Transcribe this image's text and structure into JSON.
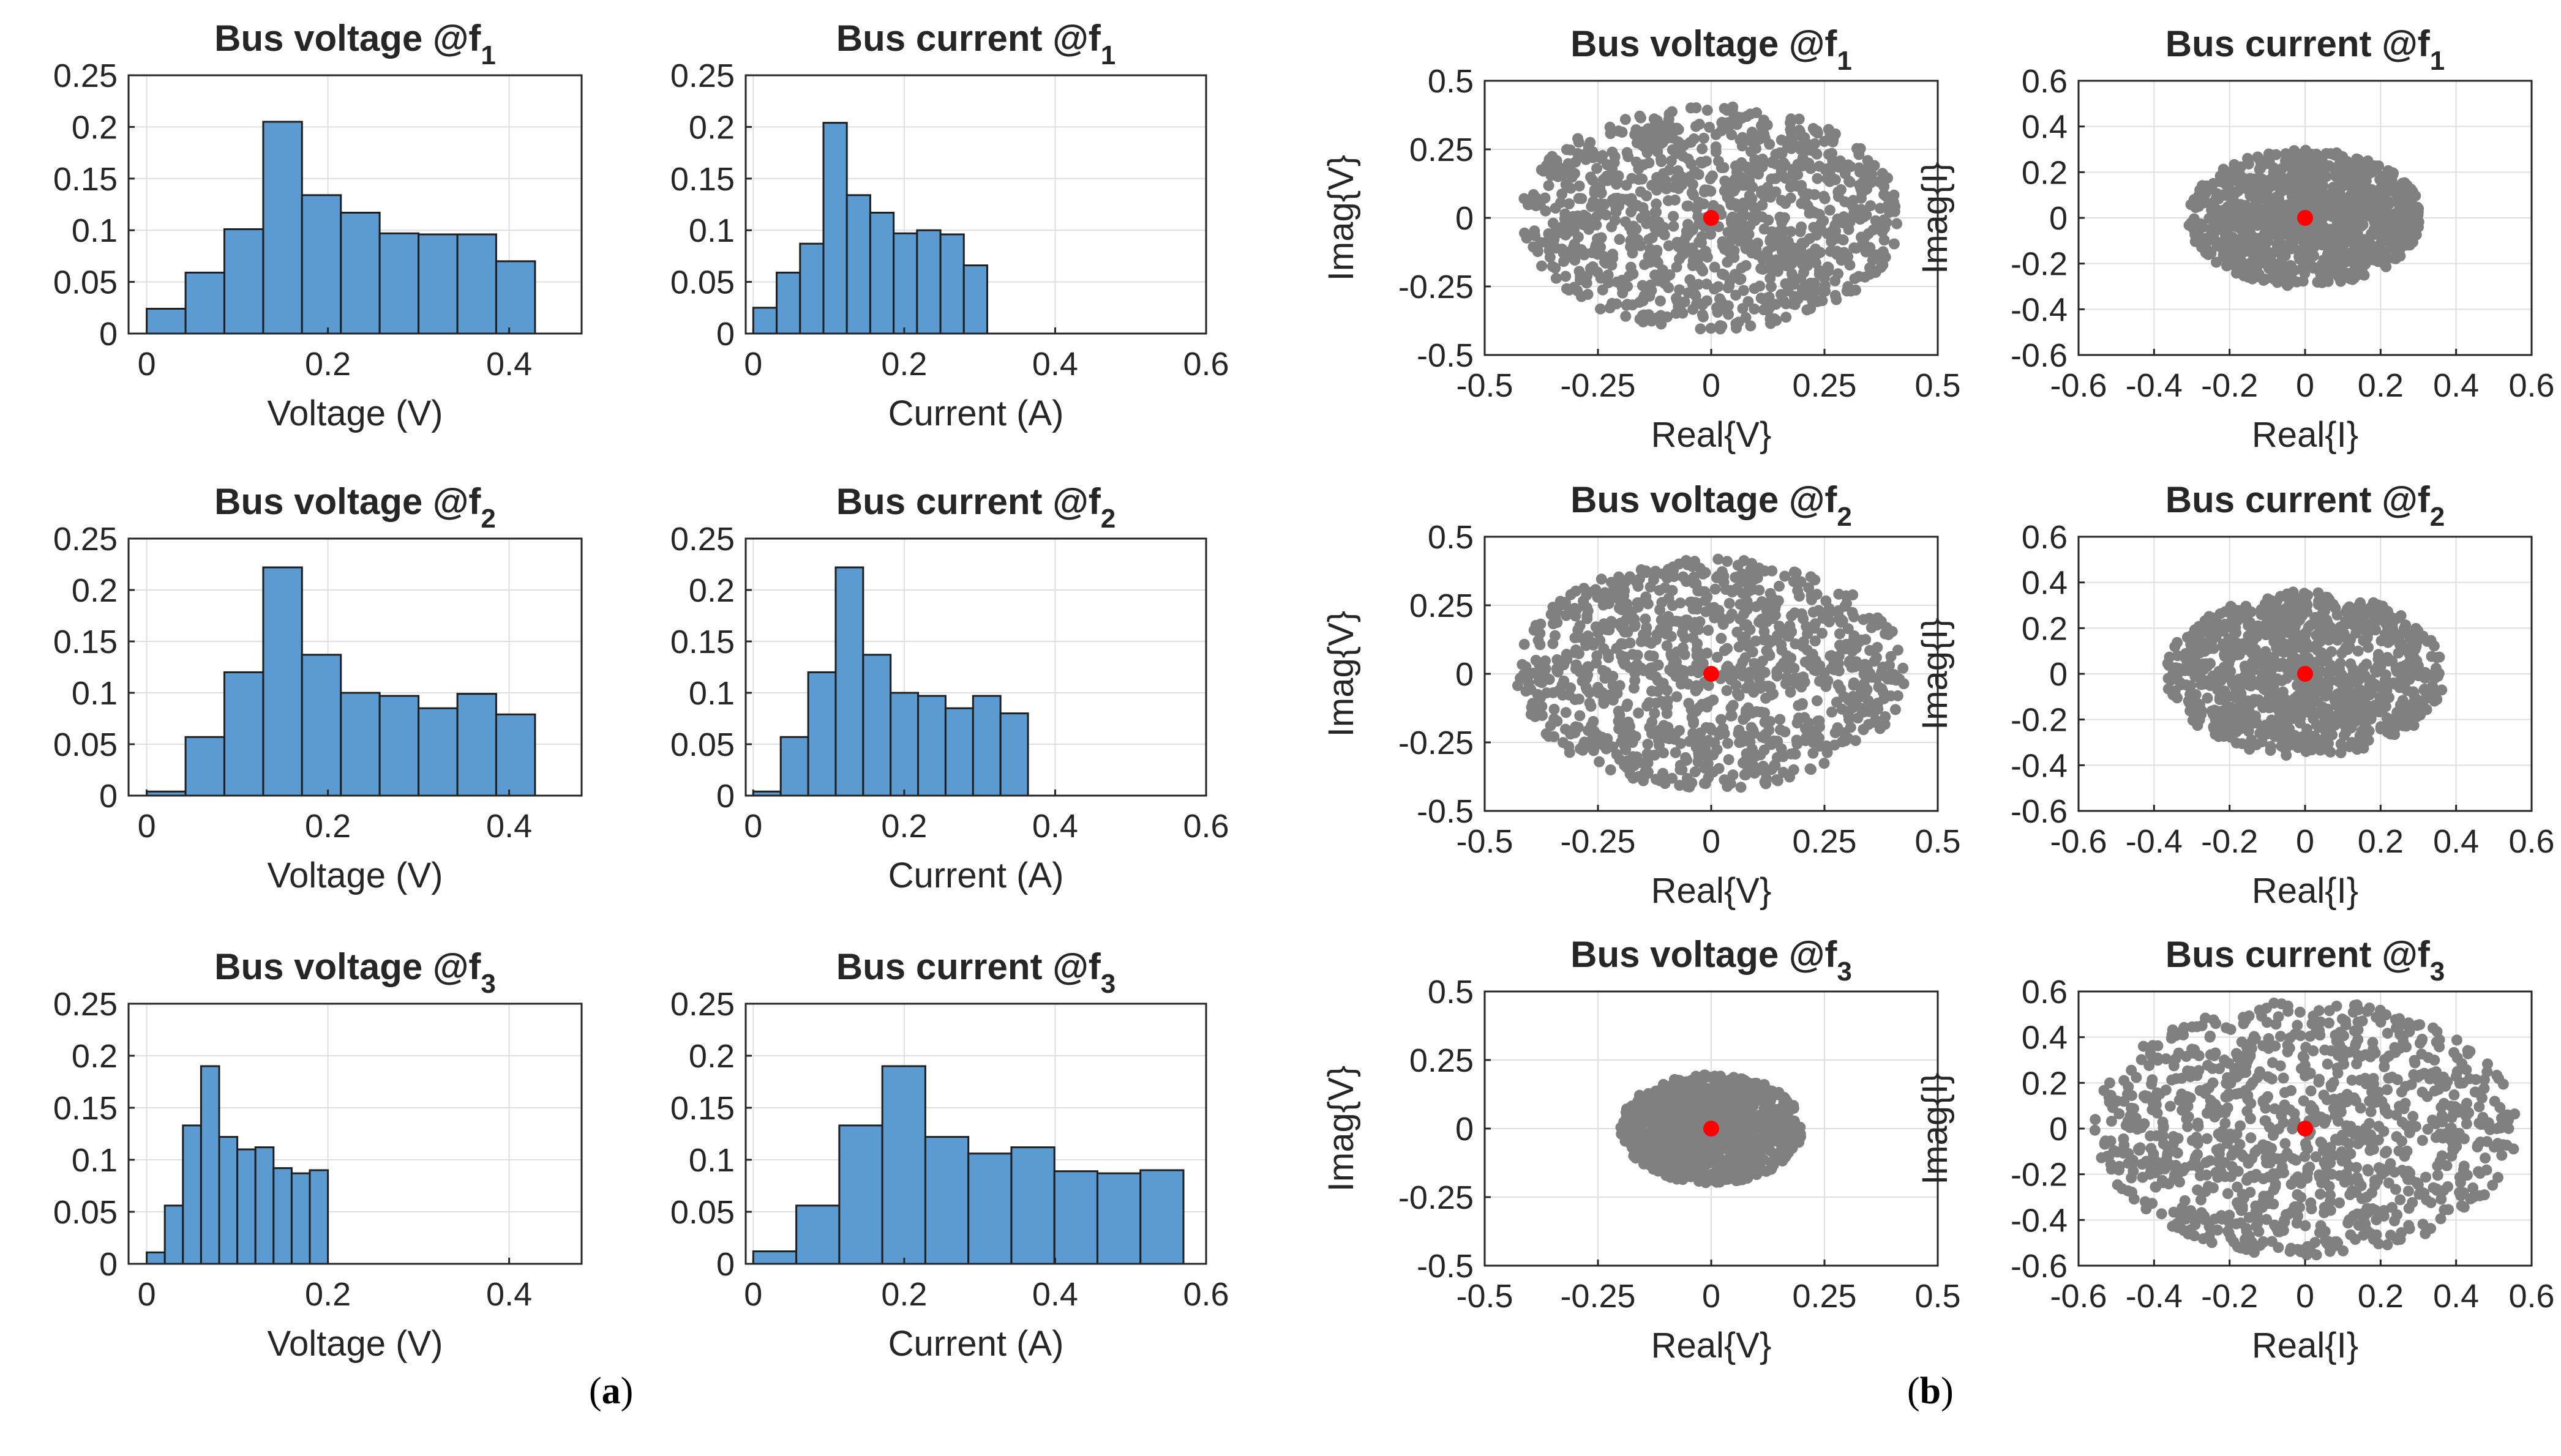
{
  "figure": {
    "panel_labels": [
      {
        "open": "(",
        "letter": "a",
        "close": ")"
      },
      {
        "open": "(",
        "letter": "b",
        "close": ")"
      }
    ]
  },
  "colors": {
    "bar_fill": "#5B9BD1",
    "bar_edge": "#1f1f1f",
    "scatter_point": "#808080",
    "center_point": "#FF0000",
    "grid": "#DFDFDF",
    "axis": "#262626"
  },
  "chart_data": [
    {
      "id": "hv1",
      "type": "bar",
      "title_main": "Bus voltage @f",
      "title_sub": "1",
      "xlabel": "Voltage (V)",
      "ylabel": "",
      "xlim": [
        -0.02,
        0.48
      ],
      "ylim": [
        0,
        0.25
      ],
      "xticks": [
        0,
        0.2,
        0.4
      ],
      "xtick_labels": [
        "0",
        "0.2",
        "0.4"
      ],
      "yticks": [
        0,
        0.05,
        0.1,
        0.15,
        0.2,
        0.25
      ],
      "ytick_labels": [
        "0",
        "0.05",
        "0.1",
        "0.15",
        "0.2",
        "0.25"
      ],
      "bin_edges": [
        0,
        0.0429,
        0.0857,
        0.1286,
        0.1714,
        0.2143,
        0.2571,
        0.3,
        0.3429,
        0.3857,
        0.4286
      ],
      "values": [
        0.024,
        0.059,
        0.101,
        0.205,
        0.134,
        0.117,
        0.097,
        0.096,
        0.096,
        0.07
      ]
    },
    {
      "id": "hc1",
      "type": "bar",
      "title_main": "Bus current @f",
      "title_sub": "1",
      "xlabel": "Current (A)",
      "ylabel": "",
      "xlim": [
        -0.01,
        0.6
      ],
      "ylim": [
        0,
        0.25
      ],
      "xticks": [
        0,
        0.2,
        0.4,
        0.6
      ],
      "xtick_labels": [
        "0",
        "0.2",
        "0.4",
        "0.6"
      ],
      "yticks": [
        0,
        0.05,
        0.1,
        0.15,
        0.2,
        0.25
      ],
      "ytick_labels": [
        "0",
        "0.05",
        "0.1",
        "0.15",
        "0.2",
        "0.25"
      ],
      "bin_edges": [
        0,
        0.031,
        0.062,
        0.093,
        0.124,
        0.155,
        0.186,
        0.217,
        0.248,
        0.279,
        0.31
      ],
      "values": [
        0.025,
        0.059,
        0.087,
        0.204,
        0.134,
        0.117,
        0.097,
        0.1,
        0.096,
        0.066
      ]
    },
    {
      "id": "hv2",
      "type": "bar",
      "title_main": "Bus voltage @f",
      "title_sub": "2",
      "xlabel": "Voltage (V)",
      "ylabel": "",
      "xlim": [
        -0.02,
        0.48
      ],
      "ylim": [
        0,
        0.25
      ],
      "xticks": [
        0,
        0.2,
        0.4
      ],
      "xtick_labels": [
        "0",
        "0.2",
        "0.4"
      ],
      "yticks": [
        0,
        0.05,
        0.1,
        0.15,
        0.2,
        0.25
      ],
      "ytick_labels": [
        "0",
        "0.05",
        "0.1",
        "0.15",
        "0.2",
        "0.25"
      ],
      "bin_edges": [
        0,
        0.0429,
        0.0857,
        0.1286,
        0.1714,
        0.2143,
        0.2571,
        0.3,
        0.3429,
        0.3857,
        0.4286
      ],
      "values": [
        0.004,
        0.057,
        0.12,
        0.222,
        0.137,
        0.1,
        0.097,
        0.085,
        0.099,
        0.079
      ]
    },
    {
      "id": "hc2",
      "type": "bar",
      "title_main": "Bus current @f",
      "title_sub": "2",
      "xlabel": "Current (A)",
      "ylabel": "",
      "xlim": [
        -0.01,
        0.6
      ],
      "ylim": [
        0,
        0.25
      ],
      "xticks": [
        0,
        0.2,
        0.4,
        0.6
      ],
      "xtick_labels": [
        "0",
        "0.2",
        "0.4",
        "0.6"
      ],
      "yticks": [
        0,
        0.05,
        0.1,
        0.15,
        0.2,
        0.25
      ],
      "ytick_labels": [
        "0",
        "0.05",
        "0.1",
        "0.15",
        "0.2",
        "0.25"
      ],
      "bin_edges": [
        0,
        0.0364,
        0.0728,
        0.1092,
        0.1456,
        0.182,
        0.2184,
        0.2548,
        0.2912,
        0.3276,
        0.364
      ],
      "values": [
        0.004,
        0.057,
        0.12,
        0.222,
        0.137,
        0.1,
        0.097,
        0.085,
        0.097,
        0.08
      ]
    },
    {
      "id": "hv3",
      "type": "bar",
      "title_main": "Bus voltage @f",
      "title_sub": "3",
      "xlabel": "Voltage (V)",
      "ylabel": "",
      "xlim": [
        -0.02,
        0.48
      ],
      "ylim": [
        0,
        0.25
      ],
      "xticks": [
        0,
        0.2,
        0.4
      ],
      "xtick_labels": [
        "0",
        "0.2",
        "0.4"
      ],
      "yticks": [
        0,
        0.05,
        0.1,
        0.15,
        0.2,
        0.25
      ],
      "ytick_labels": [
        "0",
        "0.05",
        "0.1",
        "0.15",
        "0.2",
        "0.25"
      ],
      "bin_edges": [
        0,
        0.02,
        0.04,
        0.06,
        0.08,
        0.1,
        0.12,
        0.14,
        0.16,
        0.18,
        0.2
      ],
      "values": [
        0.011,
        0.056,
        0.133,
        0.19,
        0.122,
        0.11,
        0.112,
        0.092,
        0.087,
        0.09
      ]
    },
    {
      "id": "hc3",
      "type": "bar",
      "title_main": "Bus current @f",
      "title_sub": "3",
      "xlabel": "Current (A)",
      "ylabel": "",
      "xlim": [
        -0.01,
        0.6
      ],
      "ylim": [
        0,
        0.25
      ],
      "xticks": [
        0,
        0.2,
        0.4,
        0.6
      ],
      "xtick_labels": [
        "0",
        "0.2",
        "0.4",
        "0.6"
      ],
      "yticks": [
        0,
        0.05,
        0.1,
        0.15,
        0.2,
        0.25
      ],
      "ytick_labels": [
        "0",
        "0.05",
        "0.1",
        "0.15",
        "0.2",
        "0.25"
      ],
      "bin_edges": [
        0,
        0.057,
        0.114,
        0.171,
        0.228,
        0.285,
        0.342,
        0.399,
        0.456,
        0.513,
        0.57
      ],
      "values": [
        0.012,
        0.056,
        0.133,
        0.19,
        0.122,
        0.106,
        0.112,
        0.089,
        0.087,
        0.09
      ]
    },
    {
      "id": "sv1",
      "type": "scatter",
      "title_main": "Bus voltage @f",
      "title_sub": "1",
      "xlabel": "Real{V}",
      "ylabel": "Imag{V}",
      "xlim": [
        -0.5,
        0.5
      ],
      "ylim": [
        -0.5,
        0.5
      ],
      "xticks": [
        -0.5,
        -0.25,
        0,
        0.25,
        0.5
      ],
      "xtick_labels": [
        "-0.5",
        "-0.25",
        "0",
        "0.25",
        "0.5"
      ],
      "yticks": [
        -0.5,
        -0.25,
        0,
        0.25,
        0.5
      ],
      "ytick_labels": [
        "-0.5",
        "-0.25",
        "0",
        "0.25",
        "0.5"
      ],
      "cloud": {
        "rx": 0.42,
        "ry": 0.41,
        "count": 1000,
        "seed": 11
      },
      "center": [
        0,
        0
      ]
    },
    {
      "id": "si1",
      "type": "scatter",
      "title_main": "Bus current @f",
      "title_sub": "1",
      "xlabel": "Real{I}",
      "ylabel": "Imag{I}",
      "xlim": [
        -0.6,
        0.6
      ],
      "ylim": [
        -0.6,
        0.6
      ],
      "xticks": [
        -0.6,
        -0.4,
        -0.2,
        0,
        0.2,
        0.4,
        0.6
      ],
      "xtick_labels": [
        "-0.6",
        "-0.4",
        "-0.2",
        "0",
        "0.2",
        "0.4",
        "0.6"
      ],
      "yticks": [
        -0.6,
        -0.4,
        -0.2,
        0,
        0.2,
        0.4,
        0.6
      ],
      "ytick_labels": [
        "-0.6",
        "-0.4",
        "-0.2",
        "0",
        "0.2",
        "0.4",
        "0.6"
      ],
      "cloud": {
        "rx": 0.31,
        "ry": 0.3,
        "count": 1000,
        "seed": 23
      },
      "center": [
        0,
        0
      ]
    },
    {
      "id": "sv2",
      "type": "scatter",
      "title_main": "Bus voltage @f",
      "title_sub": "2",
      "xlabel": "Real{V}",
      "ylabel": "Imag{V}",
      "xlim": [
        -0.5,
        0.5
      ],
      "ylim": [
        -0.5,
        0.5
      ],
      "xticks": [
        -0.5,
        -0.25,
        0,
        0.25,
        0.5
      ],
      "xtick_labels": [
        "-0.5",
        "-0.25",
        "0",
        "0.25",
        "0.5"
      ],
      "yticks": [
        -0.5,
        -0.25,
        0,
        0.25,
        0.5
      ],
      "ytick_labels": [
        "-0.5",
        "-0.25",
        "0",
        "0.25",
        "0.5"
      ],
      "cloud": {
        "rx": 0.43,
        "ry": 0.42,
        "count": 1000,
        "seed": 37
      },
      "center": [
        0,
        0
      ]
    },
    {
      "id": "si2",
      "type": "scatter",
      "title_main": "Bus current @f",
      "title_sub": "2",
      "xlabel": "Real{I}",
      "ylabel": "Imag{I}",
      "xlim": [
        -0.6,
        0.6
      ],
      "ylim": [
        -0.6,
        0.6
      ],
      "xticks": [
        -0.6,
        -0.4,
        -0.2,
        0,
        0.2,
        0.4,
        0.6
      ],
      "xtick_labels": [
        "-0.6",
        "-0.4",
        "-0.2",
        "0",
        "0.2",
        "0.4",
        "0.6"
      ],
      "yticks": [
        -0.6,
        -0.4,
        -0.2,
        0,
        0.2,
        0.4,
        0.6
      ],
      "ytick_labels": [
        "-0.6",
        "-0.4",
        "-0.2",
        "0",
        "0.2",
        "0.4",
        "0.6"
      ],
      "cloud": {
        "rx": 0.37,
        "ry": 0.36,
        "count": 1000,
        "seed": 41
      },
      "center": [
        0,
        0
      ]
    },
    {
      "id": "sv3",
      "type": "scatter",
      "title_main": "Bus voltage @f",
      "title_sub": "3",
      "xlabel": "Real{V}",
      "ylabel": "Imag{V}",
      "xlim": [
        -0.5,
        0.5
      ],
      "ylim": [
        -0.5,
        0.5
      ],
      "xticks": [
        -0.5,
        -0.25,
        0,
        0.25,
        0.5
      ],
      "xtick_labels": [
        "-0.5",
        "-0.25",
        "0",
        "0.25",
        "0.5"
      ],
      "yticks": [
        -0.5,
        -0.25,
        0,
        0.25,
        0.5
      ],
      "ytick_labels": [
        "-0.5",
        "-0.25",
        "0",
        "0.25",
        "0.5"
      ],
      "cloud": {
        "rx": 0.2,
        "ry": 0.2,
        "count": 1000,
        "seed": 53
      },
      "center": [
        0,
        0
      ]
    },
    {
      "id": "si3",
      "type": "scatter",
      "title_main": "Bus current @f",
      "title_sub": "3",
      "xlabel": "Real{I}",
      "ylabel": "Imag{I}",
      "xlim": [
        -0.6,
        0.6
      ],
      "ylim": [
        -0.6,
        0.6
      ],
      "xticks": [
        -0.6,
        -0.4,
        -0.2,
        0,
        0.2,
        0.4,
        0.6
      ],
      "xtick_labels": [
        "-0.6",
        "-0.4",
        "-0.2",
        "0",
        "0.2",
        "0.4",
        "0.6"
      ],
      "yticks": [
        -0.6,
        -0.4,
        -0.2,
        0,
        0.2,
        0.4,
        0.6
      ],
      "ytick_labels": [
        "-0.6",
        "-0.4",
        "-0.2",
        "0",
        "0.2",
        "0.4",
        "0.6"
      ],
      "cloud": {
        "rx": 0.56,
        "ry": 0.56,
        "count": 1000,
        "seed": 67
      },
      "center": [
        0,
        0
      ]
    }
  ]
}
